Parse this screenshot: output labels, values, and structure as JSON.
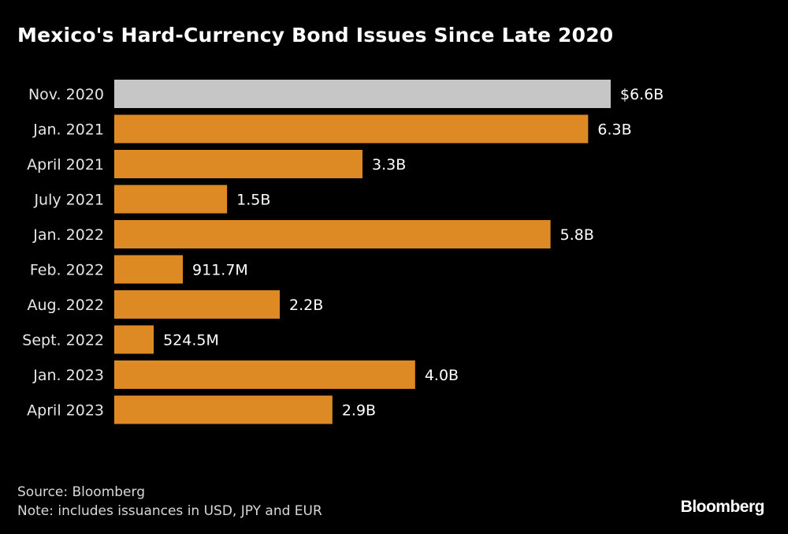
{
  "chart_data": {
    "type": "bar",
    "orientation": "horizontal",
    "title": "Mexico's Hard-Currency Bond Issues Since Late 2020",
    "categories": [
      "Nov. 2020",
      "Jan. 2021",
      "April 2021",
      "July 2021",
      "Jan. 2022",
      "Feb. 2022",
      "Aug. 2022",
      "Sept. 2022",
      "Jan. 2023",
      "April 2023"
    ],
    "values": [
      6.6,
      6.3,
      3.3,
      1.5,
      5.8,
      0.9117,
      2.2,
      0.5245,
      4.0,
      2.9
    ],
    "unit": "USD billions",
    "data_labels": [
      "$6.6B",
      "6.3B",
      "3.3B",
      "1.5B",
      "5.8B",
      "911.7M",
      "2.2B",
      "524.5M",
      "4.0B",
      "2.9B"
    ],
    "highlight_index": 0,
    "colors": {
      "highlight": "#c6c6c6",
      "default": "#dd8a25",
      "background": "#000000"
    },
    "xlim": [
      0,
      6.6
    ],
    "grid": false,
    "legend": "none"
  },
  "footer": {
    "source": "Source: Bloomberg",
    "note": "Note: includes issuances in USD, JPY and EUR",
    "logo": "Bloomberg"
  }
}
